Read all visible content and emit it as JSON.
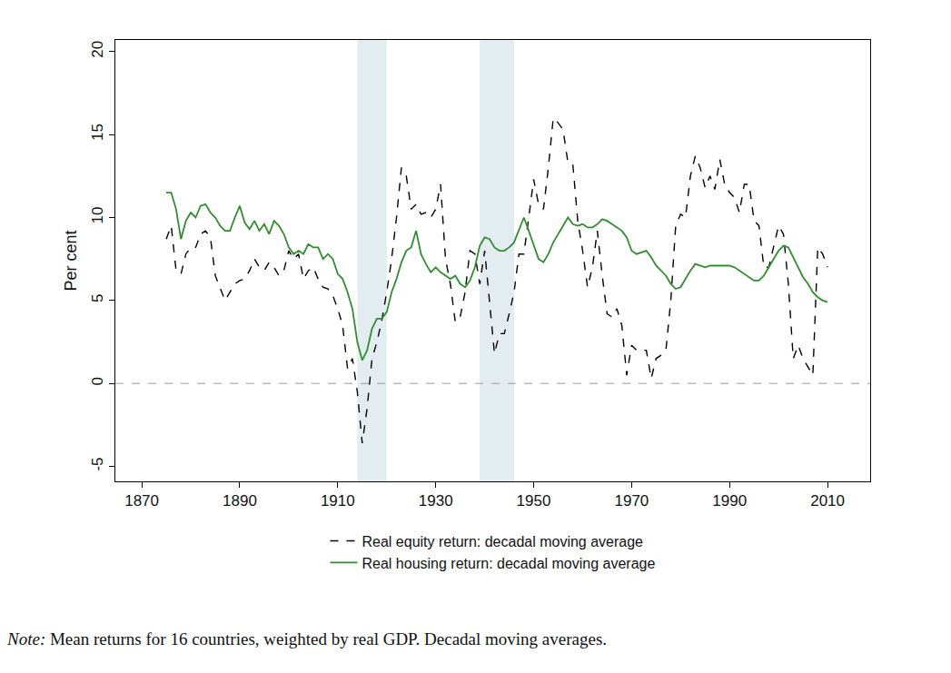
{
  "chart_data": {
    "type": "line",
    "y_label": "Per cent",
    "note_label": "Note:",
    "note": "Mean returns for 16 countries, weighted by real GDP. Decadal moving averages.",
    "x": [
      1875,
      1876,
      1877,
      1878,
      1879,
      1880,
      1881,
      1882,
      1883,
      1884,
      1885,
      1886,
      1887,
      1888,
      1889,
      1890,
      1891,
      1892,
      1893,
      1894,
      1895,
      1896,
      1897,
      1898,
      1899,
      1900,
      1901,
      1902,
      1903,
      1904,
      1905,
      1906,
      1907,
      1908,
      1909,
      1910,
      1911,
      1912,
      1913,
      1914,
      1915,
      1916,
      1917,
      1918,
      1919,
      1920,
      1921,
      1922,
      1923,
      1924,
      1925,
      1926,
      1927,
      1928,
      1929,
      1930,
      1931,
      1932,
      1933,
      1934,
      1935,
      1936,
      1937,
      1938,
      1939,
      1940,
      1941,
      1942,
      1943,
      1944,
      1945,
      1946,
      1947,
      1948,
      1949,
      1950,
      1951,
      1952,
      1953,
      1954,
      1955,
      1956,
      1957,
      1958,
      1959,
      1960,
      1961,
      1962,
      1963,
      1964,
      1965,
      1966,
      1967,
      1968,
      1969,
      1970,
      1971,
      1972,
      1973,
      1974,
      1975,
      1976,
      1977,
      1978,
      1979,
      1980,
      1981,
      1982,
      1983,
      1984,
      1985,
      1986,
      1987,
      1988,
      1989,
      1990,
      1991,
      1992,
      1993,
      1994,
      1995,
      1996,
      1997,
      1998,
      1999,
      2000,
      2001,
      2002,
      2003,
      2004,
      2005,
      2006,
      2007,
      2008,
      2009,
      2010
    ],
    "series": [
      {
        "name": "Real equity return: decadal moving average",
        "color": "#000000",
        "line_style": "dash",
        "values": [
          8.7,
          9.5,
          6.8,
          6.6,
          7.8,
          8.2,
          8.2,
          9.0,
          9.2,
          8.8,
          6.5,
          5.8,
          5.0,
          5.5,
          6.0,
          6.2,
          6.3,
          6.8,
          7.5,
          7.0,
          6.8,
          7.3,
          7.0,
          6.5,
          6.8,
          8.0,
          7.5,
          7.8,
          6.3,
          6.8,
          7.0,
          6.3,
          5.8,
          5.7,
          5.3,
          4.5,
          3.5,
          0.9,
          1.5,
          -0.5,
          -3.6,
          -1.5,
          1.5,
          2.5,
          3.8,
          5.5,
          7.5,
          10.0,
          13.0,
          12.5,
          10.5,
          10.8,
          10.2,
          10.3,
          10.0,
          10.5,
          12.0,
          7.5,
          6.0,
          3.7,
          4.0,
          5.5,
          8.0,
          7.8,
          6.0,
          8.0,
          5.0,
          1.8,
          3.0,
          3.0,
          4.2,
          5.5,
          7.8,
          7.8,
          10.0,
          12.3,
          10.8,
          10.5,
          13.0,
          16.0,
          15.7,
          15.3,
          13.3,
          13.2,
          9.8,
          8.0,
          5.8,
          7.0,
          9.2,
          6.5,
          4.2,
          4.0,
          4.5,
          3.5,
          0.5,
          2.3,
          2.0,
          2.0,
          2.0,
          0.3,
          1.5,
          1.7,
          2.0,
          5.0,
          9.5,
          10.2,
          10.0,
          12.5,
          13.7,
          13.0,
          11.8,
          12.5,
          11.7,
          13.5,
          12.0,
          11.5,
          11.2,
          10.3,
          12.0,
          12.0,
          9.8,
          9.5,
          7.0,
          7.0,
          8.2,
          9.5,
          9.0,
          6.0,
          1.5,
          2.3,
          1.5,
          1.0,
          0.5,
          8.2,
          7.8,
          7.0
        ]
      },
      {
        "name": "Real housing return: decadal moving average",
        "color": "#2f8f2f",
        "line_style": "solid",
        "values": [
          11.5,
          11.5,
          10.5,
          8.7,
          9.8,
          10.3,
          10.0,
          10.7,
          10.8,
          10.3,
          10.0,
          9.5,
          9.2,
          9.2,
          10.0,
          10.7,
          9.7,
          9.3,
          9.8,
          9.2,
          9.6,
          9.0,
          9.8,
          9.5,
          9.0,
          8.2,
          7.8,
          8.0,
          7.8,
          8.4,
          8.2,
          8.2,
          7.5,
          7.8,
          7.5,
          6.6,
          6.3,
          5.5,
          4.5,
          2.5,
          1.4,
          2.0,
          3.3,
          3.9,
          3.9,
          4.3,
          5.5,
          6.3,
          7.3,
          8.0,
          8.2,
          9.2,
          7.8,
          7.2,
          6.7,
          7.0,
          6.7,
          6.5,
          6.3,
          6.5,
          6.0,
          5.8,
          6.2,
          7.0,
          8.3,
          8.8,
          8.7,
          8.2,
          8.0,
          8.0,
          8.2,
          8.5,
          9.3,
          10.0,
          9.2,
          8.3,
          7.5,
          7.3,
          7.8,
          8.5,
          9.0,
          9.5,
          10.0,
          9.6,
          9.5,
          9.6,
          9.4,
          9.4,
          9.6,
          9.9,
          9.8,
          9.6,
          9.4,
          9.2,
          8.8,
          8.0,
          7.8,
          7.9,
          8.0,
          7.6,
          7.1,
          6.8,
          6.5,
          6.0,
          5.7,
          5.8,
          6.3,
          6.8,
          7.2,
          7.1,
          7.0,
          7.1,
          7.1,
          7.1,
          7.1,
          7.1,
          7.0,
          6.8,
          6.6,
          6.4,
          6.2,
          6.2,
          6.5,
          7.0,
          7.5,
          8.0,
          8.3,
          8.2,
          7.6,
          7.0,
          6.4,
          6.0,
          5.5,
          5.2,
          5.0,
          4.9
        ]
      }
    ],
    "shaded_periods": [
      {
        "x0": 1914,
        "x1": 1920
      },
      {
        "x0": 1939,
        "x1": 1946
      }
    ],
    "hline": 0,
    "xlim": [
      1864.6,
      2018.7
    ],
    "xticks": [
      1870,
      1890,
      1910,
      1930,
      1950,
      1970,
      1990,
      2010
    ],
    "ylim": [
      -5.9,
      20.7
    ],
    "yticks": [
      -5,
      0,
      5,
      10,
      15,
      20
    ],
    "grid": false,
    "legend": "bottom"
  }
}
